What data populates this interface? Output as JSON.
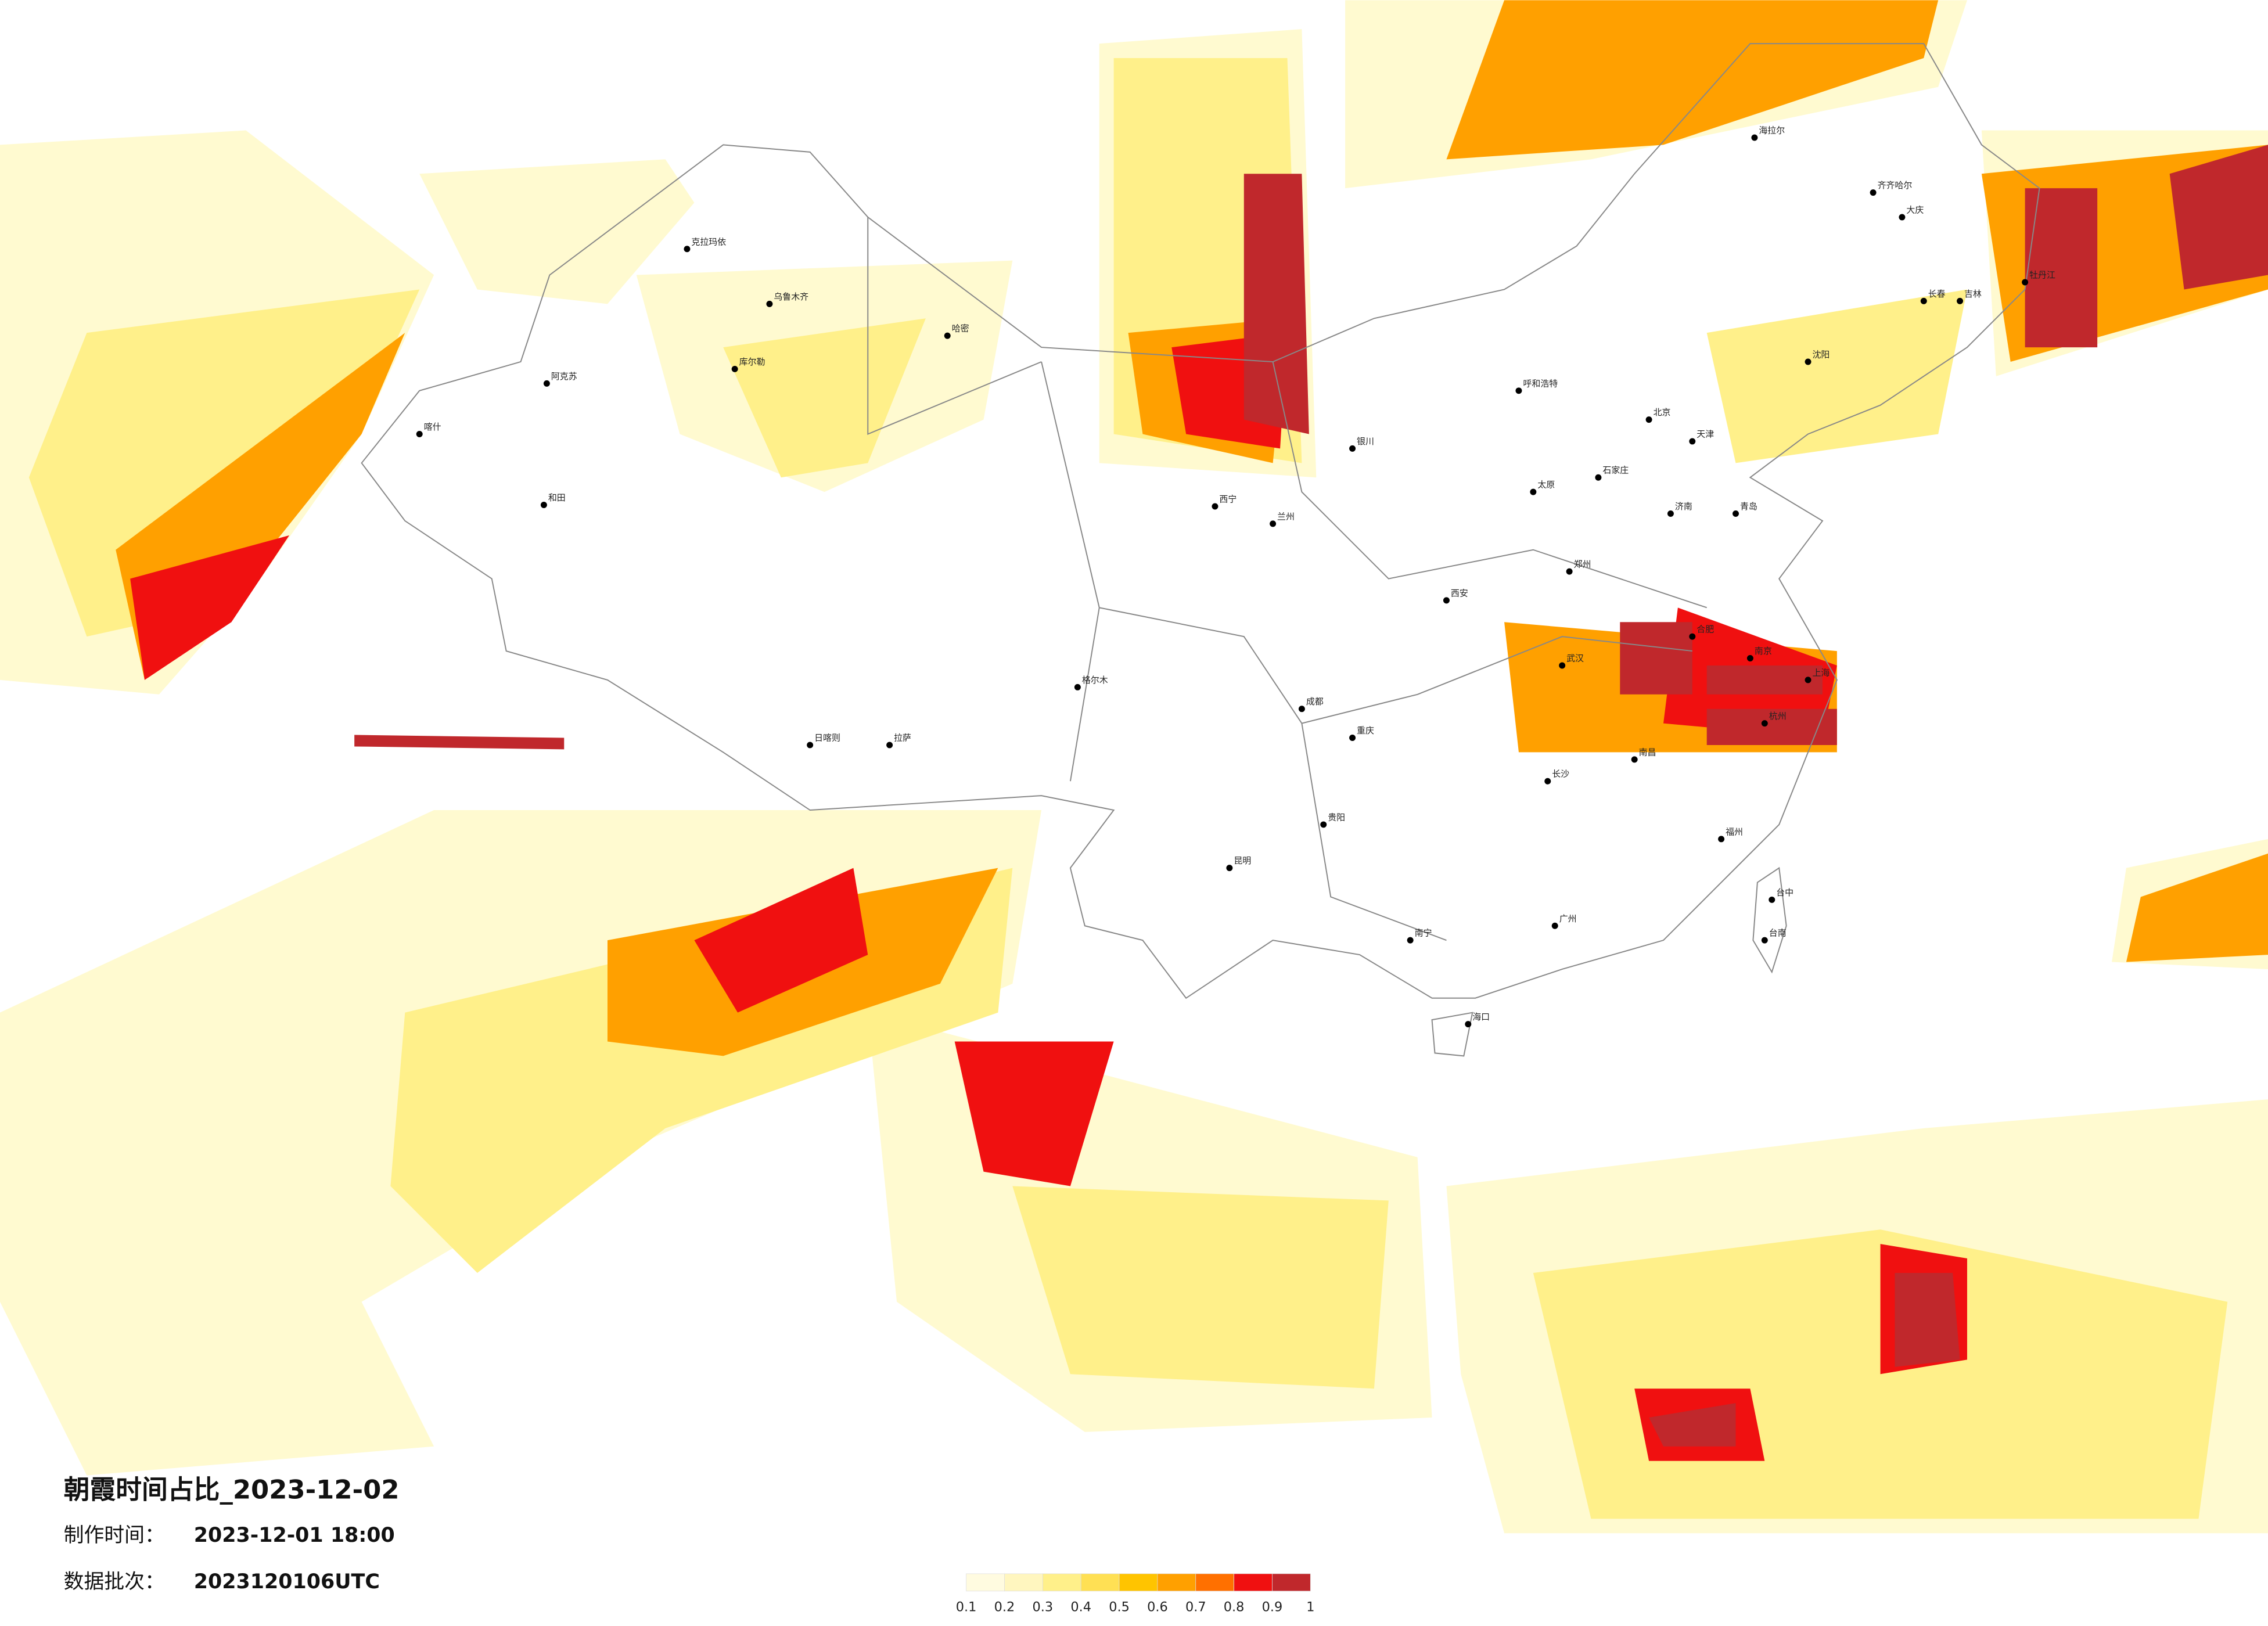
{
  "title": "朝霞时间占比_2023-12-02",
  "made_time": {
    "label": "制作时间：",
    "value": "2023-12-01 18:00"
  },
  "batch": {
    "label": "数据批次：",
    "value": "2023120106UTC"
  },
  "colorbar": {
    "ticks": [
      0.1,
      0.2,
      0.3,
      0.4,
      0.5,
      0.6,
      0.7,
      0.8,
      0.9,
      1
    ],
    "colors": [
      "#fffbe0",
      "#fff6bf",
      "#fff08a",
      "#ffe054",
      "#ffc400",
      "#ffa000",
      "#ff7000",
      "#f01010",
      "#c0282c"
    ]
  },
  "cities": [
    "克拉玛依",
    "乌鲁木齐",
    "哈密",
    "库尔勒",
    "阿克苏",
    "喀什",
    "和田",
    "海拉尔",
    "齐齐哈尔",
    "大庆",
    "长春",
    "吉林",
    "牡丹江",
    "沈阳",
    "呼和浩特",
    "北京",
    "天津",
    "石家庄",
    "太原",
    "济南",
    "青岛",
    "银川",
    "兰州",
    "西宁",
    "格尔木",
    "西安",
    "郑州",
    "合肥",
    "南京",
    "上海",
    "杭州",
    "武汉",
    "长沙",
    "南昌",
    "福州",
    "成都",
    "重庆",
    "贵阳",
    "昆明",
    "南宁",
    "广州",
    "海口",
    "拉萨",
    "日喀则",
    "台中",
    "台南"
  ]
}
